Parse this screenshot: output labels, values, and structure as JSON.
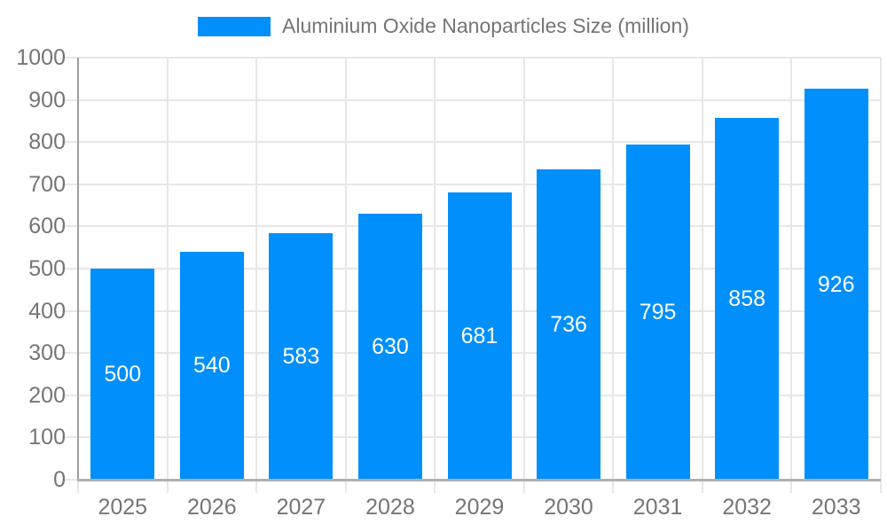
{
  "legend": {
    "label": "Aluminium Oxide Nanoparticles Size (million)",
    "swatch_color": "#008FFB"
  },
  "chart_data": {
    "type": "bar",
    "title": "Aluminium Oxide Nanoparticles Size (million)",
    "categories": [
      "2025",
      "2026",
      "2027",
      "2028",
      "2029",
      "2030",
      "2031",
      "2032",
      "2033"
    ],
    "values": [
      500,
      540,
      583,
      630,
      681,
      736,
      795,
      858,
      926
    ],
    "series": [
      {
        "name": "Aluminium Oxide Nanoparticles Size (million)",
        "values": [
          500,
          540,
          583,
          630,
          681,
          736,
          795,
          858,
          926
        ]
      }
    ],
    "xlabel": "",
    "ylabel": "",
    "ylim": [
      0,
      1000
    ],
    "yticks": [
      0,
      100,
      200,
      300,
      400,
      500,
      600,
      700,
      800,
      900,
      1000
    ],
    "grid": true,
    "legend_position": "top",
    "data_labels": "inside-center",
    "colors": {
      "bar": "#008FFB",
      "data_label": "#FFFFFF",
      "axis_label": "#757575",
      "gridline": "#E7E7E7",
      "y_axis_line": "#9E9E9E",
      "x_axis_line": "#B0B0B0",
      "background": "#FFFFFF"
    }
  }
}
